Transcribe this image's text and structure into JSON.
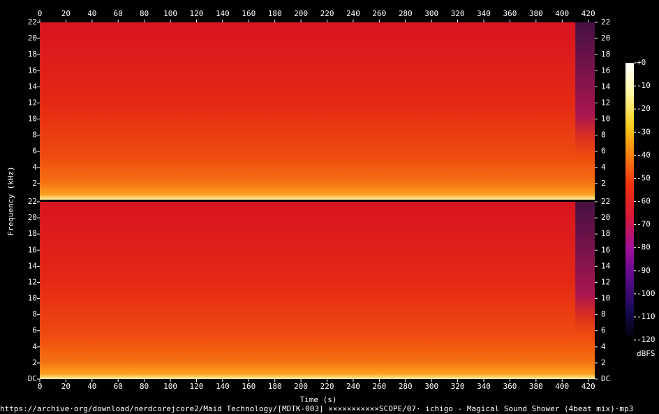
{
  "chart_data": [
    {
      "type": "spectrogram",
      "xlim": [
        0,
        425
      ],
      "ylim": [
        0,
        22
      ],
      "xticks": [
        0,
        20,
        40,
        60,
        80,
        100,
        120,
        140,
        160,
        180,
        200,
        220,
        240,
        260,
        280,
        300,
        320,
        340,
        360,
        380,
        400,
        420
      ],
      "yticks": [
        2,
        4,
        6,
        8,
        10,
        12,
        14,
        16,
        18,
        20,
        22
      ]
    },
    {
      "type": "spectrogram",
      "xlim": [
        0,
        425
      ],
      "ylim": [
        0,
        22
      ],
      "xticks": [
        0,
        20,
        40,
        60,
        80,
        100,
        120,
        140,
        160,
        180,
        200,
        220,
        240,
        260,
        280,
        300,
        320,
        340,
        360,
        380,
        400,
        420
      ],
      "yticks": [
        {
          "value": 0,
          "label": "DC"
        },
        2,
        4,
        6,
        8,
        10,
        12,
        14,
        16,
        18,
        20,
        22
      ]
    }
  ],
  "xlabel": "Time (s)",
  "ylabel": "Frequency (kHz)",
  "colorbar": {
    "label": "dBFS",
    "lim": [
      -120,
      0
    ],
    "ticks": [
      {
        "value": 0,
        "label": "+0"
      },
      -10,
      -20,
      -30,
      -40,
      -50,
      -60,
      -70,
      -80,
      -90,
      -100,
      -110,
      -120
    ],
    "colors": [
      "#000000",
      "#1a0a5a",
      "#5a0a8a",
      "#a0109a",
      "#d81838",
      "#f03010",
      "#f88010",
      "#f8d020",
      "#fff8a0",
      "#ffffff"
    ]
  },
  "source": "https://archive·org/download/nerdcorejcore2/Maid Technology/[MDTK-003] ×××××××××××SCOPE/07· ichigo - Magical Sound Shower (4beat mix)·mp3"
}
